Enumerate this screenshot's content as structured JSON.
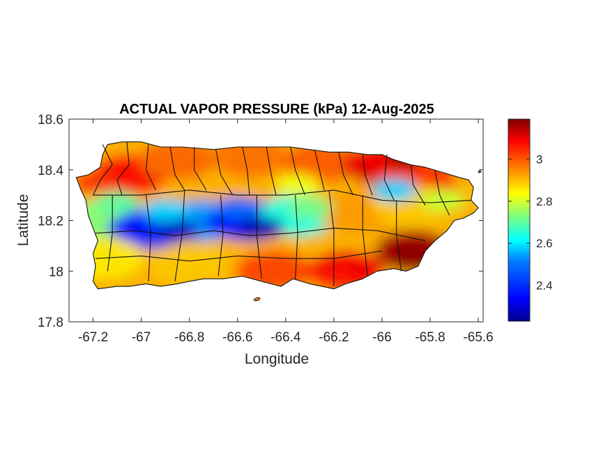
{
  "figure": {
    "title": "ACTUAL VAPOR PRESSURE (kPa) 12-Aug-2025",
    "xlabel": "Longitude",
    "ylabel": "Latitude",
    "xlim": [
      -67.3,
      -65.58
    ],
    "ylim": [
      17.8,
      18.6
    ],
    "xticks": [
      -67.2,
      -67,
      -66.8,
      -66.6,
      -66.4,
      -66.2,
      -66,
      -65.8,
      -65.6
    ],
    "xtick_labels": [
      "-67.2",
      "-67",
      "-66.8",
      "-66.6",
      "-66.4",
      "-66.2",
      "-66",
      "-65.8",
      "-65.6"
    ],
    "yticks": [
      17.8,
      18,
      18.2,
      18.4,
      18.6
    ],
    "ytick_labels": [
      "17.8",
      "18",
      "18.2",
      "18.4",
      "18.6"
    ]
  },
  "colorbar": {
    "colormap": "jet",
    "range": [
      2.23,
      3.19
    ],
    "ticks": [
      2.4,
      2.6,
      2.8,
      3.0
    ],
    "tick_labels": [
      "2.4",
      "2.6",
      "2.8",
      "3"
    ],
    "colors": [
      "#00008f",
      "#0000ff",
      "#0080ff",
      "#00ffff",
      "#80ff80",
      "#ffff00",
      "#ff8000",
      "#ff0000",
      "#800000"
    ]
  },
  "map": {
    "region": "Puerto Rico",
    "boundaries": "municipality outlines in black",
    "field": [
      {
        "lon": -67.05,
        "lat": 18.38,
        "value": 3.06
      },
      {
        "lon": -66.85,
        "lat": 18.44,
        "value": 2.97
      },
      {
        "lon": -66.55,
        "lat": 18.45,
        "value": 2.96
      },
      {
        "lon": -66.25,
        "lat": 18.43,
        "value": 2.98
      },
      {
        "lon": -66.0,
        "lat": 18.42,
        "value": 3.1
      },
      {
        "lon": -65.85,
        "lat": 18.36,
        "value": 3.02
      },
      {
        "lon": -67.15,
        "lat": 18.2,
        "value": 2.72
      },
      {
        "lon": -66.95,
        "lat": 18.17,
        "value": 2.4
      },
      {
        "lon": -66.75,
        "lat": 18.2,
        "value": 2.5
      },
      {
        "lon": -66.55,
        "lat": 18.2,
        "value": 2.33
      },
      {
        "lon": -66.35,
        "lat": 18.22,
        "value": 2.62
      },
      {
        "lon": -66.1,
        "lat": 18.23,
        "value": 2.92
      },
      {
        "lon": -65.88,
        "lat": 18.26,
        "value": 2.88
      },
      {
        "lon": -67.15,
        "lat": 18.05,
        "value": 2.85
      },
      {
        "lon": -66.8,
        "lat": 18.03,
        "value": 2.88
      },
      {
        "lon": -66.45,
        "lat": 18.0,
        "value": 3.0
      },
      {
        "lon": -66.15,
        "lat": 18.0,
        "value": 3.08
      },
      {
        "lon": -65.87,
        "lat": 18.08,
        "value": 3.15
      }
    ]
  }
}
